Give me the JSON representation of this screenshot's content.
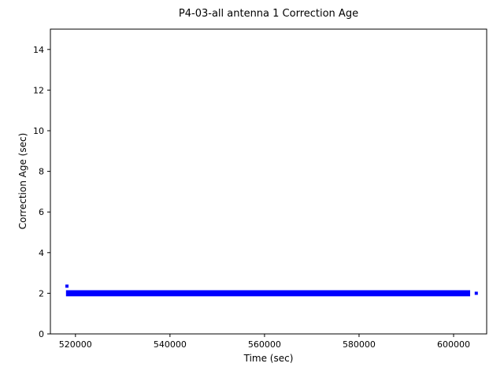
{
  "chart_data": {
    "type": "scatter",
    "title": "P4-03-all antenna 1 Correction Age",
    "xlabel": "Time (sec)",
    "ylabel": "Correction Age (sec)",
    "xlim": [
      514700,
      607000
    ],
    "ylim": [
      0,
      15
    ],
    "grid": false,
    "legend": "none",
    "marker_color": "#0000ff",
    "axis_color": "#000000",
    "x_ticks": [
      {
        "value": 520000,
        "label": "520000"
      },
      {
        "value": 540000,
        "label": "540000"
      },
      {
        "value": 560000,
        "label": "560000"
      },
      {
        "value": 580000,
        "label": "580000"
      },
      {
        "value": 600000,
        "label": "600000"
      }
    ],
    "y_ticks": [
      {
        "value": 0,
        "label": "0"
      },
      {
        "value": 2,
        "label": "2"
      },
      {
        "value": 4,
        "label": "4"
      },
      {
        "value": 6,
        "label": "6"
      },
      {
        "value": 8,
        "label": "8"
      },
      {
        "value": 10,
        "label": "10"
      },
      {
        "value": 12,
        "label": "12"
      },
      {
        "value": 14,
        "label": "14"
      }
    ],
    "series": [
      {
        "name": "correction_age",
        "description": "dense band of points, constant value 2 sec across entire time span",
        "band": {
          "x_start": 518000,
          "x_end": 603500,
          "y": 2,
          "y_half_spread": 0.15
        },
        "stray_points": [
          {
            "x": 518200,
            "y": 2.35
          },
          {
            "x": 604800,
            "y": 2.0
          }
        ]
      }
    ]
  }
}
